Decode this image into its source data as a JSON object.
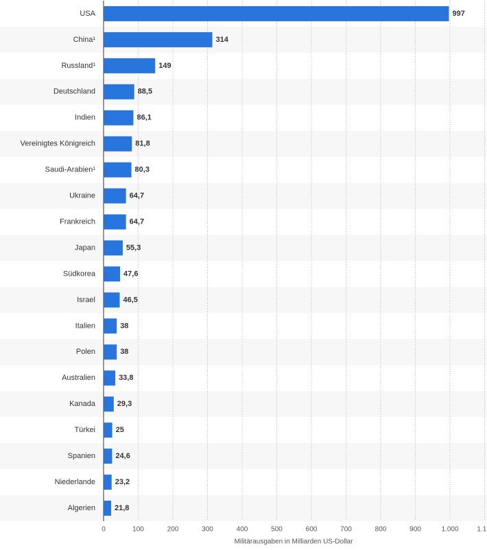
{
  "chart_data": {
    "type": "bar",
    "orientation": "horizontal",
    "x_label": "Militärausgaben in Milliarden US-Dollar",
    "categories": [
      "USA",
      "China¹",
      "Russland¹",
      "Deutschland",
      "Indien",
      "Vereinigtes Königreich",
      "Saudi-Arabien¹",
      "Ukraine",
      "Frankreich",
      "Japan",
      "Südkorea",
      "Israel",
      "Italien",
      "Polen",
      "Australien",
      "Kanada",
      "Türkei",
      "Spanien",
      "Niederlande",
      "Algerien"
    ],
    "values": [
      997,
      314,
      149,
      88.5,
      86.1,
      81.8,
      80.3,
      64.7,
      64.7,
      55.3,
      47.6,
      46.5,
      38,
      38,
      33.8,
      29.3,
      25,
      24.6,
      23.2,
      21.8
    ],
    "value_labels": [
      "997",
      "314",
      "149",
      "88,5",
      "86,1",
      "81,8",
      "80,3",
      "64,7",
      "64,7",
      "55,3",
      "47,6",
      "46,5",
      "38",
      "38",
      "33,8",
      "29,3",
      "25",
      "24,6",
      "23,2",
      "21,8"
    ],
    "color": "#2876dd",
    "xlim": [
      0,
      1100
    ],
    "xticks": [
      0,
      100,
      200,
      300,
      400,
      500,
      600,
      700,
      800,
      900,
      {
        "value": 1000,
        "label": "1.000"
      },
      {
        "value": 1100,
        "label": "1.1..."
      }
    ],
    "grid": true
  }
}
